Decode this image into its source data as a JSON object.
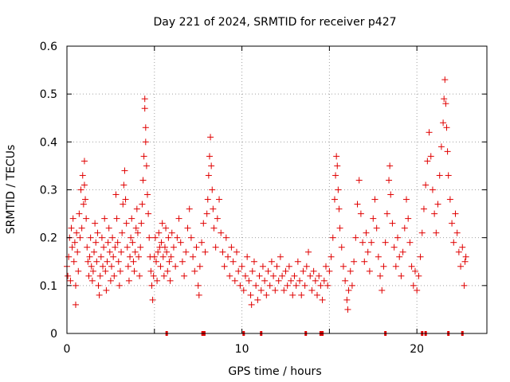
{
  "chart_data": {
    "type": "scatter",
    "title": "Day 221 of 2024, SRMTID for receiver p427",
    "xlabel": "GPS time / hours",
    "ylabel": "SRMTID / TECUs",
    "xlim": [
      0,
      24
    ],
    "ylim": [
      0,
      0.6
    ],
    "xticks": [
      0,
      5,
      10,
      15,
      20
    ],
    "yticks": [
      0,
      0.1,
      0.2,
      0.3,
      0.4,
      0.5,
      0.6
    ],
    "xtick_labels": [
      "0",
      "10",
      "20"
    ],
    "xtick_label_values": [
      0,
      10,
      20
    ],
    "ytick_labels": [
      "0",
      "0.1",
      "0.2",
      "0.3",
      "0.4",
      "0.5",
      "0.6"
    ],
    "grid": true,
    "marker": "+",
    "series": [
      {
        "name": "SRMTID",
        "color": "#e00000",
        "points": [
          [
            0.0,
            0.14
          ],
          [
            0.05,
            0.12
          ],
          [
            0.1,
            0.16
          ],
          [
            0.15,
            0.2
          ],
          [
            0.2,
            0.11
          ],
          [
            0.25,
            0.22
          ],
          [
            0.3,
            0.18
          ],
          [
            0.35,
            0.24
          ],
          [
            0.4,
            0.15
          ],
          [
            0.45,
            0.19
          ],
          [
            0.5,
            0.06
          ],
          [
            0.5,
            0.1
          ],
          [
            0.55,
            0.21
          ],
          [
            0.6,
            0.17
          ],
          [
            0.65,
            0.13
          ],
          [
            0.7,
            0.25
          ],
          [
            0.75,
            0.2
          ],
          [
            0.8,
            0.3
          ],
          [
            0.85,
            0.22
          ],
          [
            0.9,
            0.33
          ],
          [
            0.95,
            0.27
          ],
          [
            1.0,
            0.36
          ],
          [
            1.0,
            0.31
          ],
          [
            1.05,
            0.28
          ],
          [
            1.1,
            0.24
          ],
          [
            1.15,
            0.18
          ],
          [
            1.2,
            0.15
          ],
          [
            1.25,
            0.12
          ],
          [
            1.3,
            0.16
          ],
          [
            1.35,
            0.2
          ],
          [
            1.4,
            0.14
          ],
          [
            1.45,
            0.11
          ],
          [
            1.5,
            0.13
          ],
          [
            1.55,
            0.17
          ],
          [
            1.6,
            0.23
          ],
          [
            1.65,
            0.19
          ],
          [
            1.7,
            0.15
          ],
          [
            1.75,
            0.21
          ],
          [
            1.8,
            0.1
          ],
          [
            1.85,
            0.08
          ],
          [
            1.9,
            0.12
          ],
          [
            1.95,
            0.16
          ],
          [
            2.0,
            0.2
          ],
          [
            2.05,
            0.14
          ],
          [
            2.1,
            0.18
          ],
          [
            2.15,
            0.24
          ],
          [
            2.2,
            0.13
          ],
          [
            2.25,
            0.09
          ],
          [
            2.3,
            0.15
          ],
          [
            2.35,
            0.19
          ],
          [
            2.4,
            0.22
          ],
          [
            2.45,
            0.17
          ],
          [
            2.5,
            0.11
          ],
          [
            2.55,
            0.14
          ],
          [
            2.6,
            0.2
          ],
          [
            2.65,
            0.16
          ],
          [
            2.7,
            0.12
          ],
          [
            2.75,
            0.18
          ],
          [
            2.8,
            0.29
          ],
          [
            2.85,
            0.24
          ],
          [
            2.9,
            0.19
          ],
          [
            2.95,
            0.15
          ],
          [
            3.0,
            0.1
          ],
          [
            3.05,
            0.13
          ],
          [
            3.1,
            0.17
          ],
          [
            3.15,
            0.21
          ],
          [
            3.2,
            0.27
          ],
          [
            3.25,
            0.31
          ],
          [
            3.3,
            0.34
          ],
          [
            3.35,
            0.28
          ],
          [
            3.4,
            0.23
          ],
          [
            3.45,
            0.18
          ],
          [
            3.5,
            0.14
          ],
          [
            3.55,
            0.11
          ],
          [
            3.6,
            0.16
          ],
          [
            3.65,
            0.2
          ],
          [
            3.7,
            0.24
          ],
          [
            3.75,
            0.19
          ],
          [
            3.8,
            0.15
          ],
          [
            3.85,
            0.13
          ],
          [
            3.9,
            0.17
          ],
          [
            3.95,
            0.22
          ],
          [
            4.0,
            0.26
          ],
          [
            4.05,
            0.21
          ],
          [
            4.1,
            0.16
          ],
          [
            4.15,
            0.12
          ],
          [
            4.2,
            0.18
          ],
          [
            4.25,
            0.23
          ],
          [
            4.3,
            0.27
          ],
          [
            4.35,
            0.32
          ],
          [
            4.4,
            0.37
          ],
          [
            4.45,
            0.49
          ],
          [
            4.45,
            0.47
          ],
          [
            4.5,
            0.43
          ],
          [
            4.5,
            0.4
          ],
          [
            4.55,
            0.35
          ],
          [
            4.6,
            0.29
          ],
          [
            4.65,
            0.25
          ],
          [
            4.7,
            0.2
          ],
          [
            4.75,
            0.16
          ],
          [
            4.8,
            0.13
          ],
          [
            4.85,
            0.1
          ],
          [
            4.9,
            0.07
          ],
          [
            4.95,
            0.12
          ],
          [
            5.0,
            0.16
          ],
          [
            5.05,
            0.2
          ],
          [
            5.1,
            0.15
          ],
          [
            5.15,
            0.11
          ],
          [
            5.2,
            0.17
          ],
          [
            5.25,
            0.21
          ],
          [
            5.3,
            0.18
          ],
          [
            5.35,
            0.14
          ],
          [
            5.4,
            0.19
          ],
          [
            5.45,
            0.23
          ],
          [
            5.5,
            0.16
          ],
          [
            5.55,
            0.12
          ],
          [
            5.6,
            0.18
          ],
          [
            5.65,
            0.22
          ],
          [
            5.7,
            0.17
          ],
          [
            5.75,
            0.13
          ],
          [
            5.8,
            0.2
          ],
          [
            5.85,
            0.15
          ],
          [
            5.9,
            0.11
          ],
          [
            5.95,
            0.16
          ],
          [
            6.0,
            0.21
          ],
          [
            6.1,
            0.18
          ],
          [
            6.2,
            0.14
          ],
          [
            6.3,
            0.2
          ],
          [
            6.4,
            0.24
          ],
          [
            6.5,
            0.19
          ],
          [
            6.6,
            0.15
          ],
          [
            6.7,
            0.12
          ],
          [
            6.8,
            0.17
          ],
          [
            6.9,
            0.22
          ],
          [
            7.0,
            0.26
          ],
          [
            7.1,
            0.2
          ],
          [
            7.2,
            0.16
          ],
          [
            7.3,
            0.13
          ],
          [
            7.4,
            0.18
          ],
          [
            7.5,
            0.1
          ],
          [
            7.55,
            0.08
          ],
          [
            7.6,
            0.14
          ],
          [
            7.7,
            0.19
          ],
          [
            7.8,
            0.23
          ],
          [
            7.9,
            0.17
          ],
          [
            8.0,
            0.25
          ],
          [
            8.05,
            0.28
          ],
          [
            8.1,
            0.33
          ],
          [
            8.15,
            0.37
          ],
          [
            8.2,
            0.41
          ],
          [
            8.25,
            0.35
          ],
          [
            8.3,
            0.3
          ],
          [
            8.35,
            0.26
          ],
          [
            8.4,
            0.22
          ],
          [
            8.5,
            0.18
          ],
          [
            8.6,
            0.24
          ],
          [
            8.7,
            0.28
          ],
          [
            8.8,
            0.21
          ],
          [
            8.9,
            0.17
          ],
          [
            9.0,
            0.14
          ],
          [
            9.1,
            0.2
          ],
          [
            9.2,
            0.16
          ],
          [
            9.3,
            0.12
          ],
          [
            9.4,
            0.18
          ],
          [
            9.5,
            0.15
          ],
          [
            9.6,
            0.11
          ],
          [
            9.7,
            0.17
          ],
          [
            9.8,
            0.13
          ],
          [
            9.9,
            0.1
          ],
          [
            10.0,
            0.14
          ],
          [
            10.1,
            0.09
          ],
          [
            10.2,
            0.12
          ],
          [
            10.3,
            0.16
          ],
          [
            10.4,
            0.11
          ],
          [
            10.5,
            0.08
          ],
          [
            10.55,
            0.06
          ],
          [
            10.6,
            0.13
          ],
          [
            10.7,
            0.15
          ],
          [
            10.8,
            0.1
          ],
          [
            10.9,
            0.07
          ],
          [
            11.0,
            0.12
          ],
          [
            11.1,
            0.09
          ],
          [
            11.2,
            0.14
          ],
          [
            11.3,
            0.11
          ],
          [
            11.4,
            0.08
          ],
          [
            11.5,
            0.13
          ],
          [
            11.6,
            0.1
          ],
          [
            11.7,
            0.15
          ],
          [
            11.8,
            0.12
          ],
          [
            11.9,
            0.09
          ],
          [
            12.0,
            0.14
          ],
          [
            12.1,
            0.11
          ],
          [
            12.2,
            0.16
          ],
          [
            12.3,
            0.12
          ],
          [
            12.4,
            0.09
          ],
          [
            12.5,
            0.13
          ],
          [
            12.6,
            0.1
          ],
          [
            12.7,
            0.14
          ],
          [
            12.8,
            0.11
          ],
          [
            12.9,
            0.08
          ],
          [
            13.0,
            0.12
          ],
          [
            13.1,
            0.1
          ],
          [
            13.2,
            0.15
          ],
          [
            13.3,
            0.11
          ],
          [
            13.4,
            0.08
          ],
          [
            13.5,
            0.13
          ],
          [
            13.6,
            0.1
          ],
          [
            13.7,
            0.14
          ],
          [
            13.8,
            0.17
          ],
          [
            13.9,
            0.12
          ],
          [
            14.0,
            0.09
          ],
          [
            14.1,
            0.13
          ],
          [
            14.2,
            0.11
          ],
          [
            14.3,
            0.08
          ],
          [
            14.4,
            0.12
          ],
          [
            14.5,
            0.1
          ],
          [
            14.6,
            0.07
          ],
          [
            14.7,
            0.11
          ],
          [
            14.8,
            0.14
          ],
          [
            14.9,
            0.1
          ],
          [
            15.0,
            0.13
          ],
          [
            15.1,
            0.16
          ],
          [
            15.2,
            0.2
          ],
          [
            15.3,
            0.28
          ],
          [
            15.35,
            0.33
          ],
          [
            15.4,
            0.37
          ],
          [
            15.45,
            0.35
          ],
          [
            15.5,
            0.3
          ],
          [
            15.55,
            0.26
          ],
          [
            15.6,
            0.22
          ],
          [
            15.7,
            0.18
          ],
          [
            15.8,
            0.14
          ],
          [
            15.9,
            0.11
          ],
          [
            16.0,
            0.07
          ],
          [
            16.05,
            0.05
          ],
          [
            16.1,
            0.09
          ],
          [
            16.2,
            0.13
          ],
          [
            16.3,
            0.1
          ],
          [
            16.4,
            0.15
          ],
          [
            16.5,
            0.2
          ],
          [
            16.6,
            0.27
          ],
          [
            16.7,
            0.32
          ],
          [
            16.8,
            0.25
          ],
          [
            16.9,
            0.19
          ],
          [
            17.0,
            0.15
          ],
          [
            17.1,
            0.21
          ],
          [
            17.2,
            0.17
          ],
          [
            17.3,
            0.13
          ],
          [
            17.4,
            0.19
          ],
          [
            17.5,
            0.24
          ],
          [
            17.6,
            0.28
          ],
          [
            17.7,
            0.22
          ],
          [
            17.8,
            0.16
          ],
          [
            17.9,
            0.12
          ],
          [
            18.0,
            0.09
          ],
          [
            18.1,
            0.14
          ],
          [
            18.2,
            0.19
          ],
          [
            18.3,
            0.25
          ],
          [
            18.4,
            0.32
          ],
          [
            18.45,
            0.35
          ],
          [
            18.5,
            0.29
          ],
          [
            18.6,
            0.23
          ],
          [
            18.7,
            0.18
          ],
          [
            18.8,
            0.14
          ],
          [
            18.9,
            0.2
          ],
          [
            19.0,
            0.16
          ],
          [
            19.1,
            0.12
          ],
          [
            19.2,
            0.17
          ],
          [
            19.3,
            0.22
          ],
          [
            19.4,
            0.28
          ],
          [
            19.5,
            0.24
          ],
          [
            19.6,
            0.19
          ],
          [
            19.7,
            0.14
          ],
          [
            19.8,
            0.1
          ],
          [
            19.9,
            0.13
          ],
          [
            20.0,
            0.09
          ],
          [
            20.1,
            0.12
          ],
          [
            20.2,
            0.16
          ],
          [
            20.3,
            0.21
          ],
          [
            20.4,
            0.26
          ],
          [
            20.5,
            0.31
          ],
          [
            20.6,
            0.36
          ],
          [
            20.7,
            0.42
          ],
          [
            20.8,
            0.37
          ],
          [
            20.9,
            0.3
          ],
          [
            21.0,
            0.25
          ],
          [
            21.1,
            0.21
          ],
          [
            21.2,
            0.27
          ],
          [
            21.3,
            0.33
          ],
          [
            21.4,
            0.39
          ],
          [
            21.5,
            0.44
          ],
          [
            21.55,
            0.49
          ],
          [
            21.6,
            0.53
          ],
          [
            21.65,
            0.48
          ],
          [
            21.7,
            0.43
          ],
          [
            21.75,
            0.38
          ],
          [
            21.8,
            0.33
          ],
          [
            21.9,
            0.28
          ],
          [
            22.0,
            0.23
          ],
          [
            22.1,
            0.19
          ],
          [
            22.2,
            0.25
          ],
          [
            22.3,
            0.21
          ],
          [
            22.4,
            0.17
          ],
          [
            22.5,
            0.14
          ],
          [
            22.6,
            0.18
          ],
          [
            22.7,
            0.1
          ],
          [
            22.75,
            0.15
          ],
          [
            22.8,
            0.16
          ]
        ]
      }
    ],
    "baseline_markers_x": [
      5.7,
      7.75,
      7.85,
      10.1,
      11.1,
      13.65,
      14.5,
      14.6,
      18.2,
      20.3,
      20.5,
      21.8,
      22.6
    ]
  }
}
